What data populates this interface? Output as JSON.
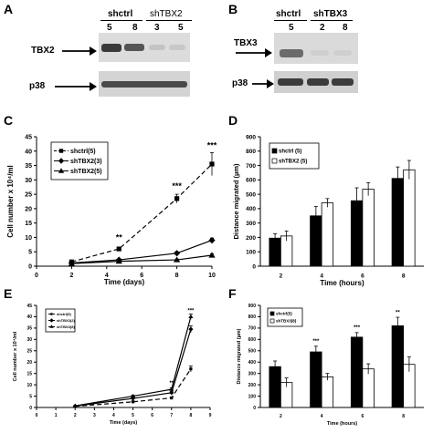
{
  "panels": {
    "A": {
      "letter": "A",
      "group1": "shctrl",
      "group2": "shTBX2",
      "lanes": [
        "5",
        "8",
        "3",
        "5"
      ],
      "protein": "TBX2",
      "loading": "p38"
    },
    "B": {
      "letter": "B",
      "group1": "shctrl",
      "group2": "shTBX3",
      "lanes": [
        "5",
        "2",
        "8"
      ],
      "protein": "TBX3",
      "loading": "p38"
    },
    "C": {
      "letter": "C"
    },
    "D": {
      "letter": "D"
    },
    "E": {
      "letter": "E"
    },
    "F": {
      "letter": "F"
    }
  },
  "chart_data": [
    {
      "id": "C",
      "type": "line",
      "xlabel": "Time (days)",
      "ylabel": "Cell number x 10⁴/ml",
      "xlim": [
        0,
        10
      ],
      "ylim": [
        0,
        45
      ],
      "xticks": [
        0,
        2,
        4,
        6,
        8,
        10
      ],
      "yticks": [
        0,
        5,
        10,
        15,
        20,
        25,
        30,
        35,
        40,
        45
      ],
      "legend_position": "top-left",
      "series": [
        {
          "name": "shctrl(5)",
          "x": [
            2,
            4.7,
            8,
            10
          ],
          "y": [
            1.5,
            6,
            23.5,
            35.5
          ],
          "err": [
            0,
            0.6,
            1.5,
            4
          ],
          "dash": true,
          "marker": "square"
        },
        {
          "name": "shTBX2(3)",
          "x": [
            2,
            4.7,
            8,
            10
          ],
          "y": [
            1.1,
            2.2,
            4.5,
            9
          ],
          "err": [
            0,
            0.3,
            0.5,
            0.8
          ],
          "dash": false,
          "marker": "diamond"
        },
        {
          "name": "shTBX2(5)",
          "x": [
            2,
            4.7,
            8,
            10
          ],
          "y": [
            0.9,
            1.7,
            2.2,
            3.8
          ],
          "err": [
            0,
            0.2,
            0.3,
            0.5
          ],
          "dash": false,
          "marker": "triangle"
        }
      ],
      "annotations": [
        {
          "text": "**",
          "x": 4.7,
          "y": 9
        },
        {
          "text": "***",
          "x": 8,
          "y": 27
        },
        {
          "text": "***",
          "x": 10,
          "y": 41
        }
      ]
    },
    {
      "id": "D",
      "type": "bar",
      "xlabel": "Time (hours)",
      "ylabel": "Distance migrated (µm)",
      "ylim": [
        0,
        900
      ],
      "yticks": [
        0,
        100,
        200,
        300,
        400,
        500,
        600,
        700,
        800,
        900
      ],
      "categories": [
        "2",
        "4",
        "6",
        "8"
      ],
      "legend_position": "top-left",
      "series": [
        {
          "name": "shctrl (5)",
          "values": [
            195,
            350,
            455,
            610
          ],
          "err": [
            30,
            65,
            90,
            80
          ],
          "color": "#000000"
        },
        {
          "name": "shTBX2 (5)",
          "values": [
            210,
            440,
            535,
            670
          ],
          "err": [
            35,
            30,
            45,
            65
          ],
          "color": "#ffffff"
        }
      ]
    },
    {
      "id": "E",
      "type": "line",
      "xlabel": "Time (days)",
      "ylabel": "Cell number x 10⁴/ml",
      "xlim": [
        0,
        9
      ],
      "ylim": [
        0,
        45
      ],
      "xticks": [
        0,
        1,
        2,
        3,
        4,
        5,
        6,
        7,
        8,
        9
      ],
      "yticks": [
        0,
        5,
        10,
        15,
        20,
        25,
        30,
        35,
        40,
        45
      ],
      "legend_position": "top-left",
      "series": [
        {
          "name": "shctrl(5)",
          "x": [
            2,
            5,
            7,
            8
          ],
          "y": [
            0.5,
            2.5,
            4.2,
            17
          ],
          "err": [
            0,
            0.3,
            0.4,
            1.3
          ],
          "dash": true,
          "marker": "square"
        },
        {
          "name": "shTBX3(2)",
          "x": [
            2,
            5,
            7,
            8
          ],
          "y": [
            0.6,
            4,
            6.5,
            34.5
          ],
          "err": [
            0,
            0.4,
            0.5,
            1.5
          ],
          "dash": false,
          "marker": "diamond"
        },
        {
          "name": "shTBX3(8)",
          "x": [
            2,
            5,
            7,
            8
          ],
          "y": [
            0.7,
            5,
            8,
            40
          ],
          "err": [
            0,
            0.4,
            0.6,
            1.2
          ],
          "dash": false,
          "marker": "triangle"
        }
      ],
      "annotations": [
        {
          "text": "**",
          "x": 7,
          "y": 10
        },
        {
          "text": "***",
          "x": 8,
          "y": 42
        }
      ]
    },
    {
      "id": "F",
      "type": "bar",
      "xlabel": "Time (hours)",
      "ylabel": "Distance migrated (µm)",
      "ylim": [
        0,
        900
      ],
      "yticks": [
        0,
        100,
        200,
        300,
        400,
        500,
        600,
        700,
        800,
        900
      ],
      "categories": [
        "2",
        "4",
        "6",
        "8"
      ],
      "legend_position": "top-left",
      "series": [
        {
          "name": "shctrl(5)",
          "values": [
            360,
            490,
            620,
            720
          ],
          "err": [
            50,
            50,
            40,
            75
          ],
          "color": "#000000"
        },
        {
          "name": "shTBX3(8)",
          "values": [
            220,
            270,
            340,
            380
          ],
          "err": [
            40,
            30,
            45,
            65
          ],
          "color": "#ffffff"
        }
      ],
      "annotations": [
        {
          "text": "***",
          "category": 1,
          "y": 570
        },
        {
          "text": "***",
          "category": 2,
          "y": 690
        },
        {
          "text": "**",
          "category": 3,
          "y": 825
        }
      ]
    }
  ]
}
